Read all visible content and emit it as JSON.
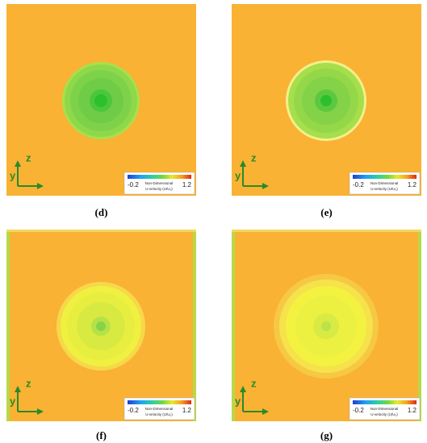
{
  "panels": [
    {
      "caption": "(d)",
      "axis_y": "y",
      "axis_z": "z",
      "legend": {
        "min": "-0.2",
        "max": "1.2",
        "title": "Non-Dimensional",
        "subtitle": "U-velocity (U/U₀)"
      }
    },
    {
      "caption": "(e)",
      "axis_y": "y",
      "axis_z": "z",
      "legend": {
        "min": "-0.2",
        "max": "1.2",
        "title": "Non-Dimensional",
        "subtitle": "U-velocity (U/U₀)"
      }
    },
    {
      "caption": "(f)",
      "axis_y": "y",
      "axis_z": "z",
      "legend": {
        "min": "-0.2",
        "max": "1.2",
        "title": "Non-Dimensional",
        "subtitle": "U-velocity (U/U₀)"
      }
    },
    {
      "caption": "(g)",
      "axis_y": "y",
      "axis_z": "z",
      "legend": {
        "min": "-0.2",
        "max": "1.2",
        "title": "Non-Dimensional",
        "subtitle": "U-velocity (U/U₀)"
      }
    }
  ]
}
